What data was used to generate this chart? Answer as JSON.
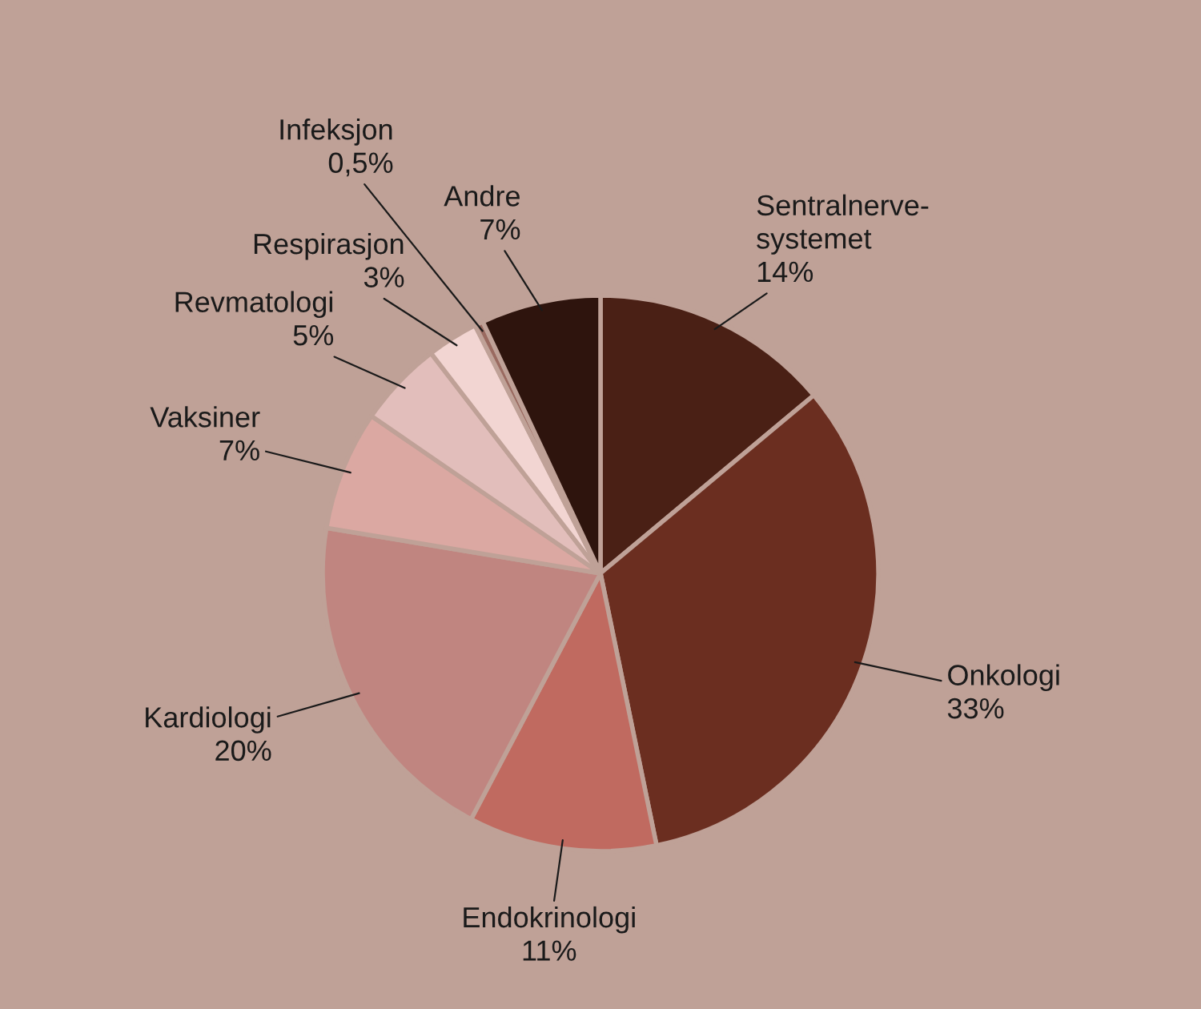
{
  "chart_data": {
    "type": "pie",
    "categories": [
      "Sentralnerve-\nsystemet",
      "Onkologi",
      "Endokrinologi",
      "Kardiologi",
      "Vaksiner",
      "Revmatologi",
      "Respirasjon",
      "Infeksjon",
      "Andre"
    ],
    "values": [
      14,
      33,
      11,
      20,
      7,
      5,
      3,
      0.5,
      7
    ],
    "value_labels": [
      "14%",
      "33%",
      "11%",
      "20%",
      "7%",
      "5%",
      "3%",
      "0,5%",
      "7%"
    ],
    "colors": [
      "#4a2015",
      "#6b2e20",
      "#c06a60",
      "#c08580",
      "#dba8a2",
      "#e2bebb",
      "#f2d5d2",
      "#9a6a60",
      "#2e140d"
    ]
  }
}
